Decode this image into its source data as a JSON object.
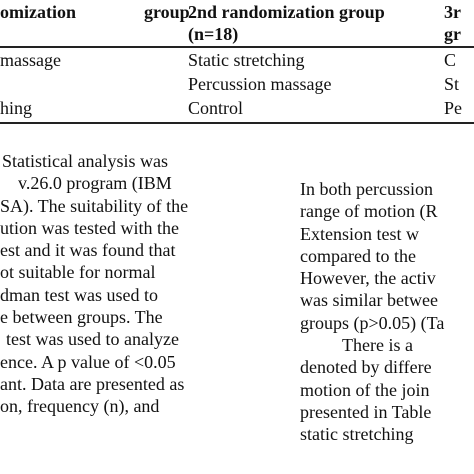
{
  "table": {
    "headers": [
      [
        "omization",
        "group"
      ],
      [
        "2nd randomization group",
        "(n=18)"
      ],
      [
        "3r",
        "gr"
      ]
    ],
    "rows": [
      [
        "massage",
        "Static stretching",
        "C"
      ],
      [
        "",
        "Percussion massage",
        "St"
      ],
      [
        "hing",
        "Control",
        "Pe"
      ]
    ]
  },
  "left_column": {
    "lines": [
      "Statistical analysis was",
      "v.26.0 program (IBM",
      "SA). The suitability of the",
      "ution was tested with the",
      "est and it was found that",
      "ot suitable for normal",
      "dman test was used to",
      "e between groups. The",
      "test was used to analyze",
      "ence. A p value of <0.05",
      "ant. Data are presented as",
      "on, frequency (n), and"
    ]
  },
  "right_column": {
    "lines": [
      "In both percussion",
      "range of motion (R",
      "Extension test w",
      "compared to the",
      "However, the activ",
      "was similar betwee",
      "groups (p>0.05) (Ta",
      "There is a",
      "denoted by differe",
      "motion of the join",
      "presented in Table",
      "static stretching"
    ]
  }
}
